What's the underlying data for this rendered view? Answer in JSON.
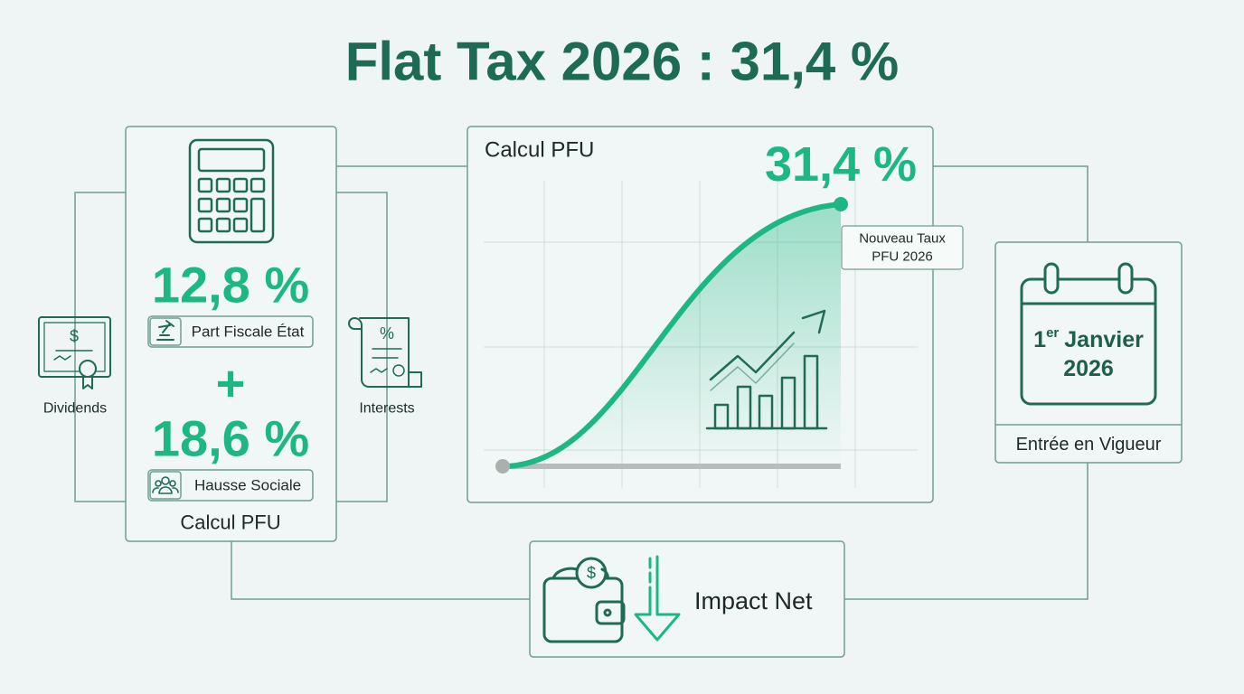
{
  "title": "Flat Tax 2026 : 31,4 %",
  "left_panel": {
    "rate_1": "12,8 %",
    "label_1": "Part Fiscale État",
    "operator": "+",
    "rate_2": "18,6 %",
    "label_2": "Hausse Sociale",
    "caption": "Calcul PFU"
  },
  "inputs": [
    "Dividends",
    "Interests"
  ],
  "chart_panel": {
    "title": "Calcul PFU",
    "rate": "31,4 %",
    "callout": [
      "Nouveau Taux",
      "PFU 2026"
    ]
  },
  "date_panel": {
    "day": "1",
    "day_suffix": "er",
    "month": "Janvier",
    "year": "2026",
    "caption": "Entrée en Vigueur"
  },
  "impact_panel": {
    "label": "Impact Net"
  }
}
